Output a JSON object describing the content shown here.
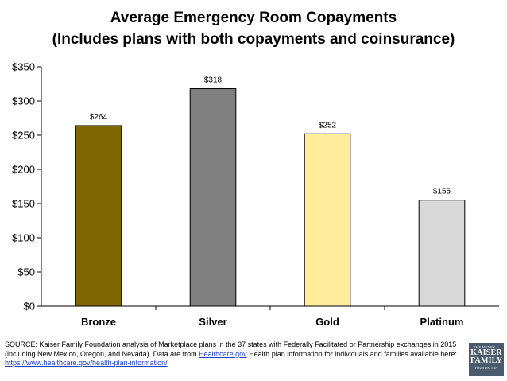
{
  "title_line1": "Average Emergency Room Copayments",
  "title_line2": "(Includes plans with both copayments and coinsurance)",
  "chart_data": {
    "type": "bar",
    "categories": [
      "Bronze",
      "Silver",
      "Gold",
      "Platinum"
    ],
    "values": [
      264,
      318,
      252,
      155
    ],
    "data_labels": [
      "$264",
      "$318",
      "$252",
      "$155"
    ],
    "colors": [
      "#7f6600",
      "#808080",
      "#ffed9c",
      "#d9d9d9"
    ],
    "ylim": [
      0,
      350
    ],
    "yticks": [
      0,
      50,
      100,
      150,
      200,
      250,
      300,
      350
    ],
    "ytick_labels": [
      "$0",
      "$50",
      "$100",
      "$150",
      "$200",
      "$250",
      "$300",
      "$350"
    ],
    "grid": false,
    "legend": "none"
  },
  "source": {
    "text1": "SOURCE: Kaiser Family Foundation analysis of Marketplace plans in the 37 states with Federally Facilitated or Partnership exchanges in 2015 (including New Mexico, Oregon, and Nevada). Data are from ",
    "link1": "Healthcare.gov",
    "text2": " Health plan information for individuals and families available here: ",
    "link2": "https://www.healthcare.gov/health-plan-information/"
  },
  "logo": {
    "line1": "THE HENRY J.",
    "line2": "KAISER",
    "line3": "FAMILY",
    "line4": "FOUNDATION"
  }
}
